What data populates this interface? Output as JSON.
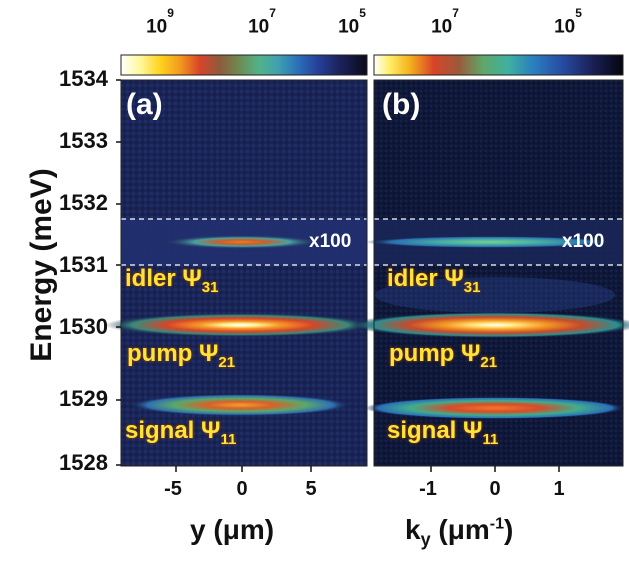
{
  "colorbar_a": {
    "ticks": [
      {
        "base": "10",
        "exp": "9"
      },
      {
        "base": "10",
        "exp": "7"
      },
      {
        "base": "10",
        "exp": "5"
      }
    ]
  },
  "colorbar_b": {
    "ticks": [
      {
        "base": "10",
        "exp": "7"
      },
      {
        "base": "10",
        "exp": "5"
      }
    ]
  },
  "y_axis": {
    "title": "Energy (meV)",
    "ticks": [
      "1534",
      "1533",
      "1532",
      "1531",
      "1530",
      "1529",
      "1528"
    ]
  },
  "panel_a": {
    "label": "(a)",
    "x_title_main": "y (",
    "x_title_unit": "μm",
    "x_title_close": ")",
    "x_ticks": [
      "-5",
      "0",
      "5"
    ],
    "gain_label": "x100"
  },
  "panel_b": {
    "label": "(b)",
    "x_title_var": "k",
    "x_title_sub": "y",
    "x_title_unit": " (μm",
    "x_title_sup": "-1",
    "x_title_close": ")",
    "x_ticks": [
      "-1",
      "0",
      "1"
    ],
    "gain_label": "x100"
  },
  "modes": {
    "idler": {
      "text": "idler ",
      "symbol": "Ψ",
      "sub": "31"
    },
    "pump": {
      "text": "pump ",
      "symbol": "Ψ",
      "sub": "21"
    },
    "signal": {
      "text": "signal ",
      "symbol": "Ψ",
      "sub": "11"
    }
  },
  "colors": {
    "background": "#1a2555",
    "dashed": "#ffffff",
    "label_yellow": "#ffe23a"
  }
}
